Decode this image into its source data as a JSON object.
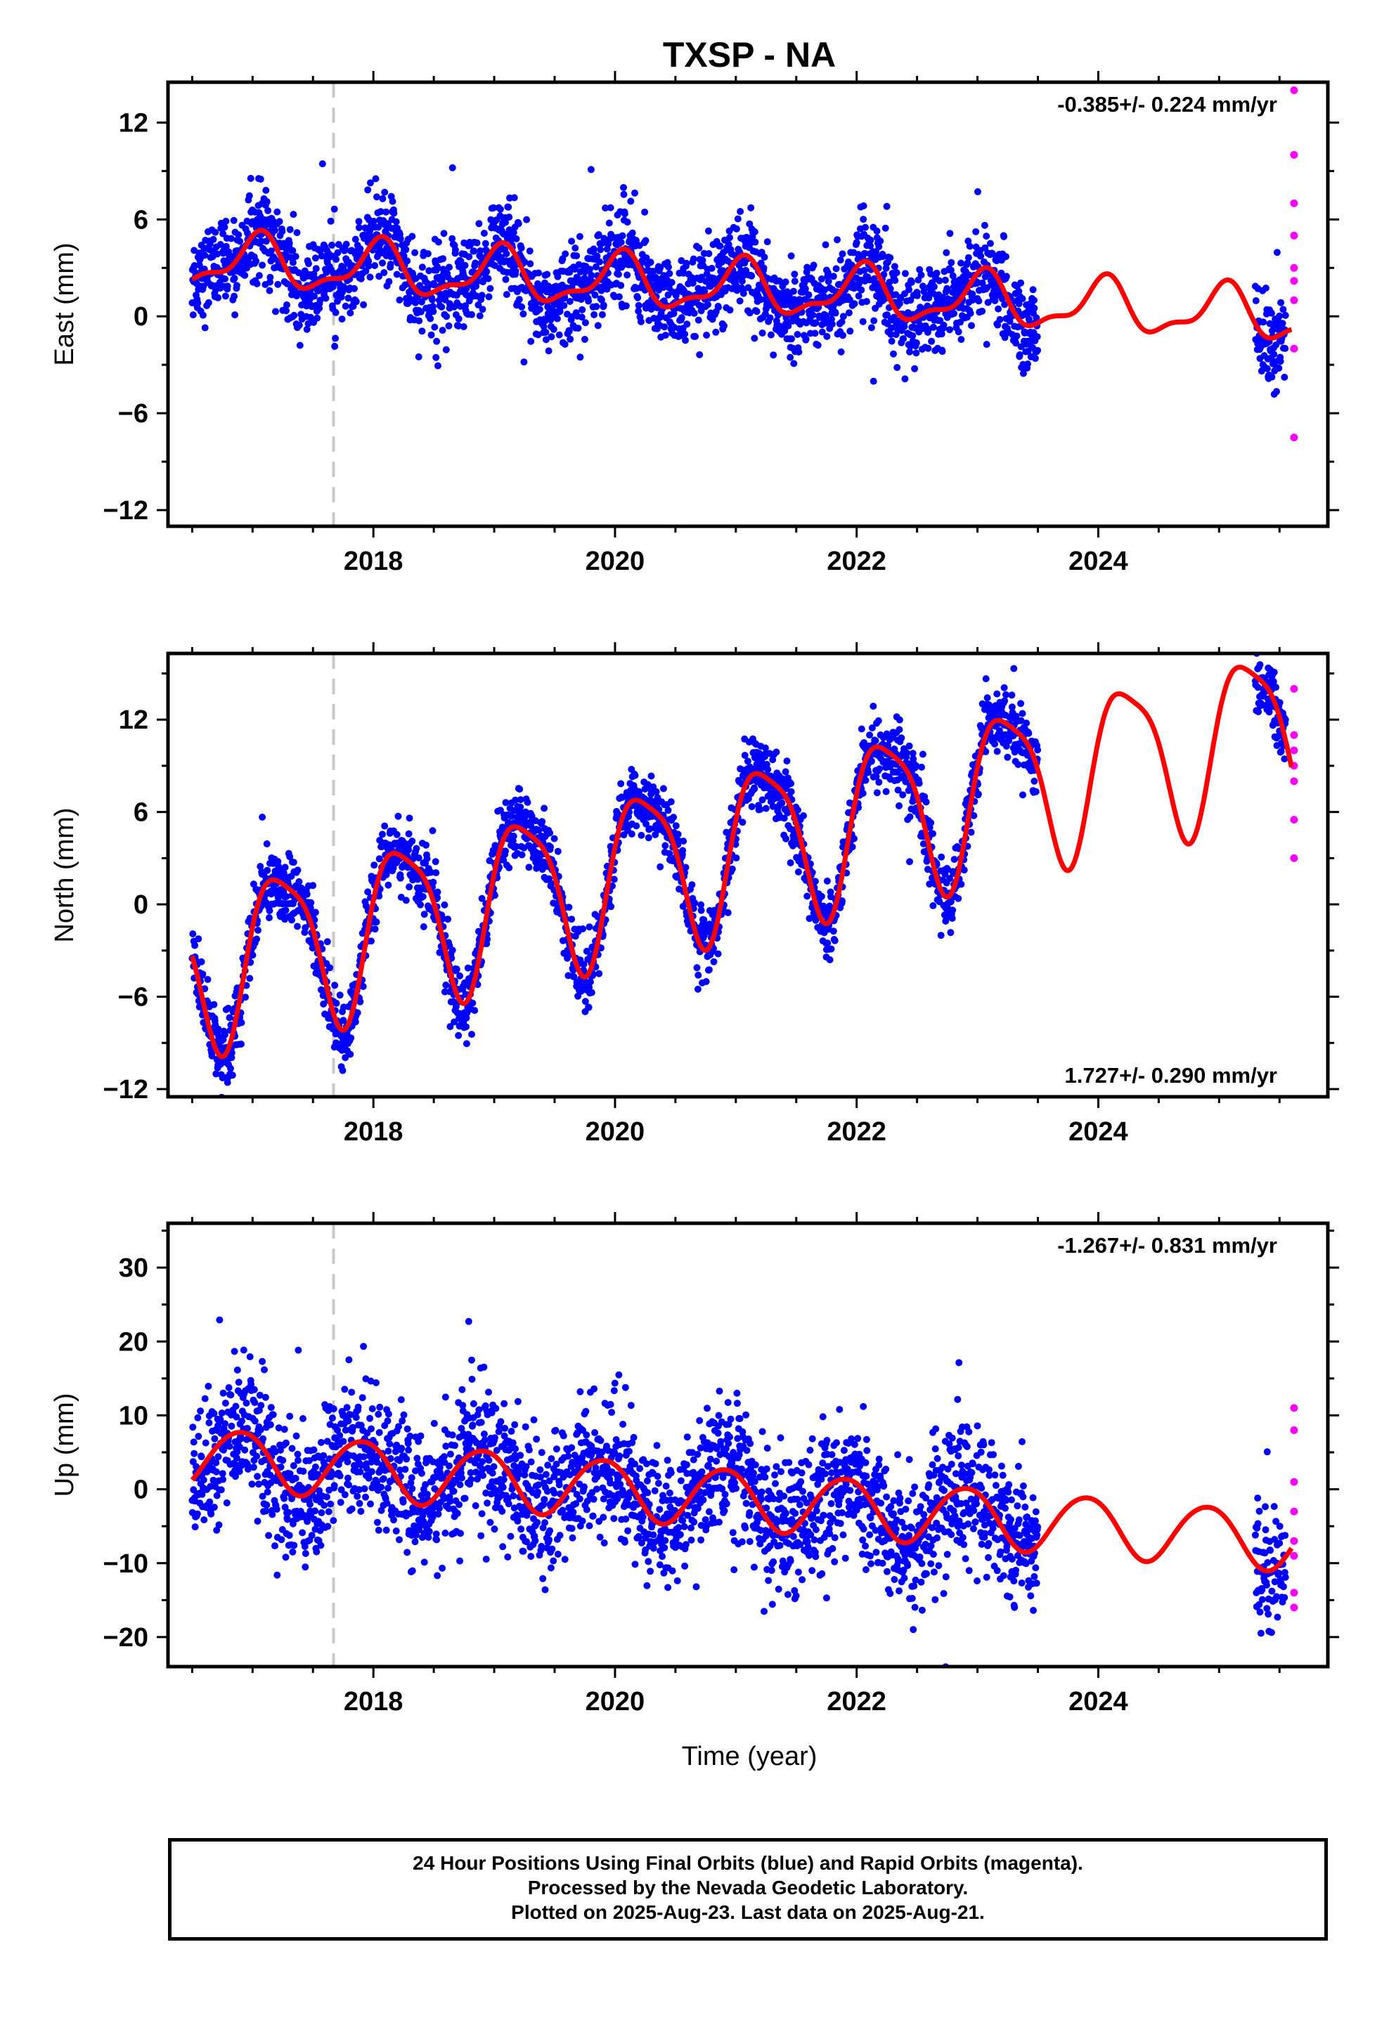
{
  "figure_title": "TXSP - NA",
  "x_axis_label": "Time (year)",
  "footer": {
    "line1": "24 Hour Positions Using Final Orbits (blue) and Rapid Orbits (magenta).",
    "line2": "Processed by the Nevada Geodetic Laboratory.",
    "line3": "Plotted on 2025-Aug-23. Last data on 2025-Aug-21."
  },
  "colors": {
    "final_orbits": "#0000ff",
    "rapid_orbits": "#ff00ff",
    "model_fit": "#ff0000",
    "event_line": "#c8c8c8"
  },
  "chart_data": [
    {
      "type": "scatter",
      "component": "East",
      "ylabel": "East (mm)",
      "xlim": [
        2016.3,
        2025.9
      ],
      "ylim": [
        -13,
        14.5
      ],
      "x_ticks": [
        2018,
        2020,
        2022,
        2024
      ],
      "y_ticks": [
        -12,
        -6,
        0,
        6,
        12
      ],
      "velocity_label": "-0.385+/- 0.224 mm/yr",
      "velocity_label_position": "top-right",
      "event_line_year": 2017.67,
      "final_data_ranges": [
        [
          2016.5,
          2023.5
        ],
        [
          2025.3,
          2025.55
        ]
      ],
      "model": {
        "offset": 3.5,
        "rate": -0.385,
        "annual_amp": 1.5,
        "annual_phase": 1.3,
        "semiannual_amp": 0.6,
        "semiannual_phase": 0.4,
        "noise_sd": 1.4
      },
      "rapid_orbit_values": [
        14,
        10,
        7,
        5,
        3,
        2.2,
        1,
        -2,
        -7.5
      ]
    },
    {
      "type": "scatter",
      "component": "North",
      "ylabel": "North (mm)",
      "xlim": [
        2016.3,
        2025.9
      ],
      "ylim": [
        -12.5,
        16.3
      ],
      "x_ticks": [
        2018,
        2020,
        2022,
        2024
      ],
      "y_ticks": [
        -12,
        -6,
        0,
        6,
        12
      ],
      "velocity_label": "1.727+/- 0.290 mm/yr",
      "velocity_label_position": "bottom-right",
      "event_line_year": 2017.67,
      "final_data_ranges": [
        [
          2016.5,
          2023.5
        ],
        [
          2025.3,
          2025.55
        ]
      ],
      "model": {
        "offset": -4.0,
        "rate": 1.727,
        "annual_amp": 5.2,
        "annual_phase": 0.1,
        "semiannual_amp": 1.2,
        "semiannual_phase": 1.3,
        "noise_sd": 1.1
      },
      "rapid_orbit_values": [
        14,
        11,
        10,
        9,
        8,
        5.5,
        3
      ]
    },
    {
      "type": "scatter",
      "component": "Up",
      "ylabel": "Up (mm)",
      "xlim": [
        2016.3,
        2025.9
      ],
      "ylim": [
        -24,
        36
      ],
      "x_ticks": [
        2018,
        2020,
        2022,
        2024
      ],
      "y_ticks": [
        -20,
        -10,
        0,
        10,
        20,
        30
      ],
      "velocity_label": "-1.267+/- 0.831 mm/yr",
      "velocity_label_position": "top-right",
      "event_line_year": 2017.67,
      "final_data_ranges": [
        [
          2016.5,
          2023.5
        ],
        [
          2025.3,
          2025.55
        ]
      ],
      "model": {
        "offset": 4.5,
        "rate": -1.267,
        "annual_amp": 4.0,
        "annual_phase": 2.2,
        "semiannual_amp": 0.3,
        "semiannual_phase": 0.0,
        "noise_sd": 4.5
      },
      "rapid_orbit_values": [
        11,
        8,
        1,
        -3,
        -7,
        -9,
        -14,
        -16
      ]
    }
  ]
}
